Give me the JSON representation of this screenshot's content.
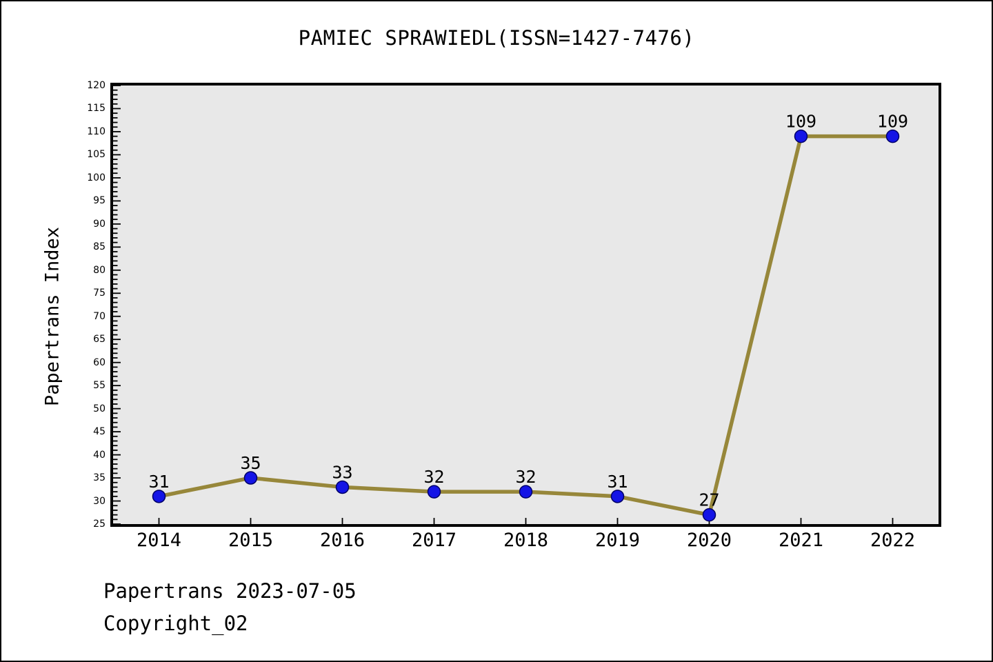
{
  "chart_data": {
    "type": "line",
    "title": "PAMIEC SPRAWIEDL(ISSN=1427-7476)",
    "xlabel": "",
    "ylabel": "Papertrans Index",
    "categories": [
      2014,
      2015,
      2016,
      2017,
      2018,
      2019,
      2020,
      2021,
      2022
    ],
    "values": [
      31,
      35,
      33,
      32,
      32,
      31,
      27,
      109,
      109
    ],
    "point_labels": [
      "31",
      "35",
      "33",
      "32",
      "32",
      "31",
      "27",
      "109",
      "109"
    ],
    "ylim": [
      25,
      120
    ],
    "xlim": [
      2013.5,
      2022.5
    ],
    "ytick_step": 5,
    "yminor_step": 1,
    "grid": false,
    "legend": "none",
    "colors": {
      "line": "#97873a",
      "marker_fill": "#1414e6",
      "marker_edge": "#000066",
      "plot_bg": "#e8e8e8",
      "axis": "#000000",
      "text": "#000000"
    }
  },
  "footer": {
    "line1": "Papertrans 2023-07-05",
    "line2": "Copyright_02"
  }
}
